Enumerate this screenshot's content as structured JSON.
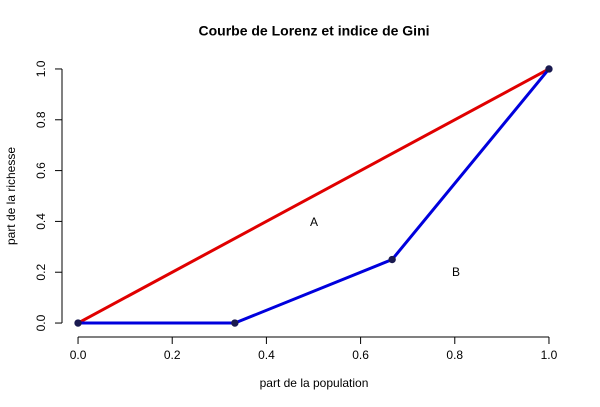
{
  "chart_data": {
    "type": "line",
    "title": "Courbe de Lorenz et indice de Gini",
    "x_label": "part de la population",
    "y_label": "part de la richesse",
    "xlim": [
      -0.04,
      1.04
    ],
    "ylim": [
      -0.04,
      1.04
    ],
    "xticks": [
      {
        "value": 0,
        "label": "0.0"
      },
      0.2,
      0.4,
      0.6,
      0.8,
      {
        "value": 1,
        "label": "1.0"
      }
    ],
    "yticks": [
      {
        "value": 0,
        "label": "0.0"
      },
      0.2,
      0.4,
      0.6,
      0.8,
      {
        "value": 1,
        "label": "1.0"
      }
    ],
    "series": [
      {
        "color": "#e00000",
        "x": [
          0,
          1
        ],
        "values": [
          0,
          1
        ],
        "points": false
      },
      {
        "color": "#0000dd",
        "x": [
          0,
          0.333,
          0.667,
          1
        ],
        "values": [
          0,
          0,
          0.25,
          1
        ],
        "points": true,
        "point_color": "#1a1a50"
      }
    ],
    "annotations": [
      "A",
      "B"
    ]
  }
}
